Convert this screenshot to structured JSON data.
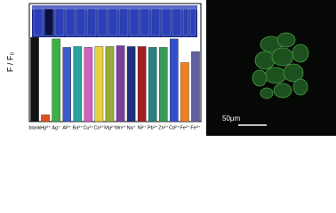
{
  "chart_data": {
    "type": "bar",
    "y_label": "F / F₀",
    "categories": [
      "blank",
      "Hg²⁺",
      "Ag⁺",
      "Al³⁺",
      "Ba²⁺",
      "Cu²⁺",
      "Co²⁺",
      "Mg²⁺",
      "Mn²⁺",
      "Na⁺",
      "Ni²⁺",
      "Pb²⁺",
      "Zn²⁺",
      "Cd²⁺",
      "Fe²⁺",
      "Fe³⁺"
    ],
    "values": [
      1.0,
      0.08,
      0.98,
      0.88,
      0.89,
      0.88,
      0.89,
      0.89,
      0.9,
      0.89,
      0.89,
      0.88,
      0.88,
      0.98,
      0.7,
      0.83
    ],
    "colors": [
      "#111111",
      "#e0501a",
      "#3cb043",
      "#3a5bc8",
      "#2aa0a0",
      "#d060c0",
      "#e8d040",
      "#9aaa3a",
      "#7a40a0",
      "#203080",
      "#a02020",
      "#2a8080",
      "#3a9a5a",
      "#3050d0",
      "#f08020",
      "#6060a0"
    ],
    "ylim": [
      0,
      1.4
    ],
    "annotations": [
      "50μm"
    ]
  }
}
